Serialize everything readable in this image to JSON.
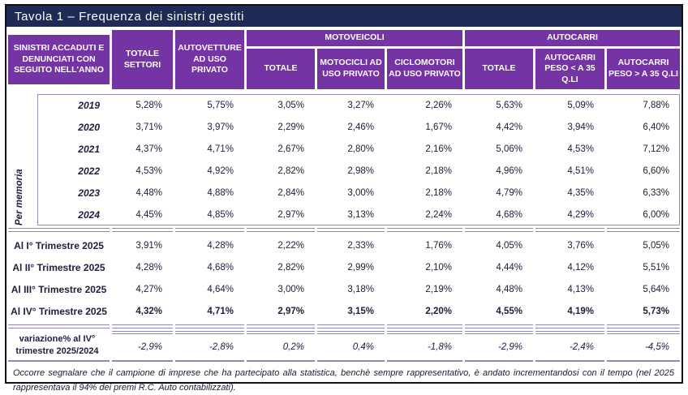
{
  "title": "Tavola 1 – Frequenza dei sinistri gestiti",
  "colors": {
    "header_purple": "#7434a4",
    "title_navy": "#1f2a56",
    "grid_line": "#8a8ab8",
    "text": "#20203e"
  },
  "header": {
    "row_label": "SINISTRI ACCADUTI E DENUNCIATI CON SEGUITO NELL'ANNO",
    "totale_settori": "TOTALE SETTORI",
    "autovetture": "AUTOVETTURE AD USO PRIVATO",
    "motoveicoli_group": "MOTOVEICOLI",
    "autocarri_group": "AUTOCARRI",
    "moto_totale": "TOTALE",
    "motocicli": "MOTOCICLI AD USO PRIVATO",
    "ciclomotori": "CICLOMOTORI AD USO PRIVATO",
    "autocarri_totale": "TOTALE",
    "autocarri_lt35": "AUTOCARRI PESO < A 35 Q.LI",
    "autocarri_gt35": "AUTOCARRI PESO > A 35 Q.LI"
  },
  "per_memoria": {
    "label": "Per memoria",
    "rows": [
      {
        "label": "2019",
        "values": [
          "5,28%",
          "5,75%",
          "3,05%",
          "3,27%",
          "2,26%",
          "5,63%",
          "5,09%",
          "7,88%"
        ]
      },
      {
        "label": "2020",
        "values": [
          "3,71%",
          "3,97%",
          "2,29%",
          "2,46%",
          "1,67%",
          "4,42%",
          "3,94%",
          "6,40%"
        ]
      },
      {
        "label": "2021",
        "values": [
          "4,37%",
          "4,71%",
          "2,67%",
          "2,80%",
          "2,16%",
          "5,06%",
          "4,53%",
          "7,12%"
        ]
      },
      {
        "label": "2022",
        "values": [
          "4,53%",
          "4,92%",
          "2,82%",
          "2,98%",
          "2,18%",
          "4,96%",
          "4,51%",
          "6,60%"
        ]
      },
      {
        "label": "2023",
        "values": [
          "4,48%",
          "4,88%",
          "2,84%",
          "3,00%",
          "2,18%",
          "4,79%",
          "4,35%",
          "6,33%"
        ]
      },
      {
        "label": "2024",
        "values": [
          "4,45%",
          "4,85%",
          "2,97%",
          "3,13%",
          "2,24%",
          "4,68%",
          "4,29%",
          "6,00%"
        ]
      }
    ]
  },
  "quarters": {
    "rows": [
      {
        "label": "Al  I° Trimestre 2025",
        "values": [
          "3,91%",
          "4,28%",
          "2,22%",
          "2,33%",
          "1,76%",
          "4,05%",
          "3,76%",
          "5,05%"
        ]
      },
      {
        "label": "Al  II° Trimestre 2025",
        "values": [
          "4,28%",
          "4,68%",
          "2,82%",
          "2,99%",
          "2,10%",
          "4,44%",
          "4,12%",
          "5,51%"
        ]
      },
      {
        "label": "Al III° Trimestre 2025",
        "values": [
          "4,27%",
          "4,64%",
          "3,00%",
          "3,18%",
          "2,19%",
          "4,48%",
          "4,13%",
          "5,64%"
        ]
      },
      {
        "label": "Al IV° Trimestre 2025",
        "values": [
          "4,32%",
          "4,71%",
          "2,97%",
          "3,15%",
          "2,20%",
          "4,55%",
          "4,19%",
          "5,73%"
        ]
      }
    ]
  },
  "variation": {
    "label_line1": "variazione% al IV°",
    "label_line2": "trimestre 2025/2024",
    "values": [
      "-2,9%",
      "-2,8%",
      "0,2%",
      "0,4%",
      "-1,8%",
      "-2,9%",
      "-2,4%",
      "-4,5%"
    ]
  },
  "footnote": "Occorre segnalare che il campione di imprese che ha partecipato alla statistica, benchè sempre rappresentativo, è andato incrementandosi con il tempo  (nel 2025 rappresentava il 94% dei premi R.C. Auto contabilizzati)."
}
